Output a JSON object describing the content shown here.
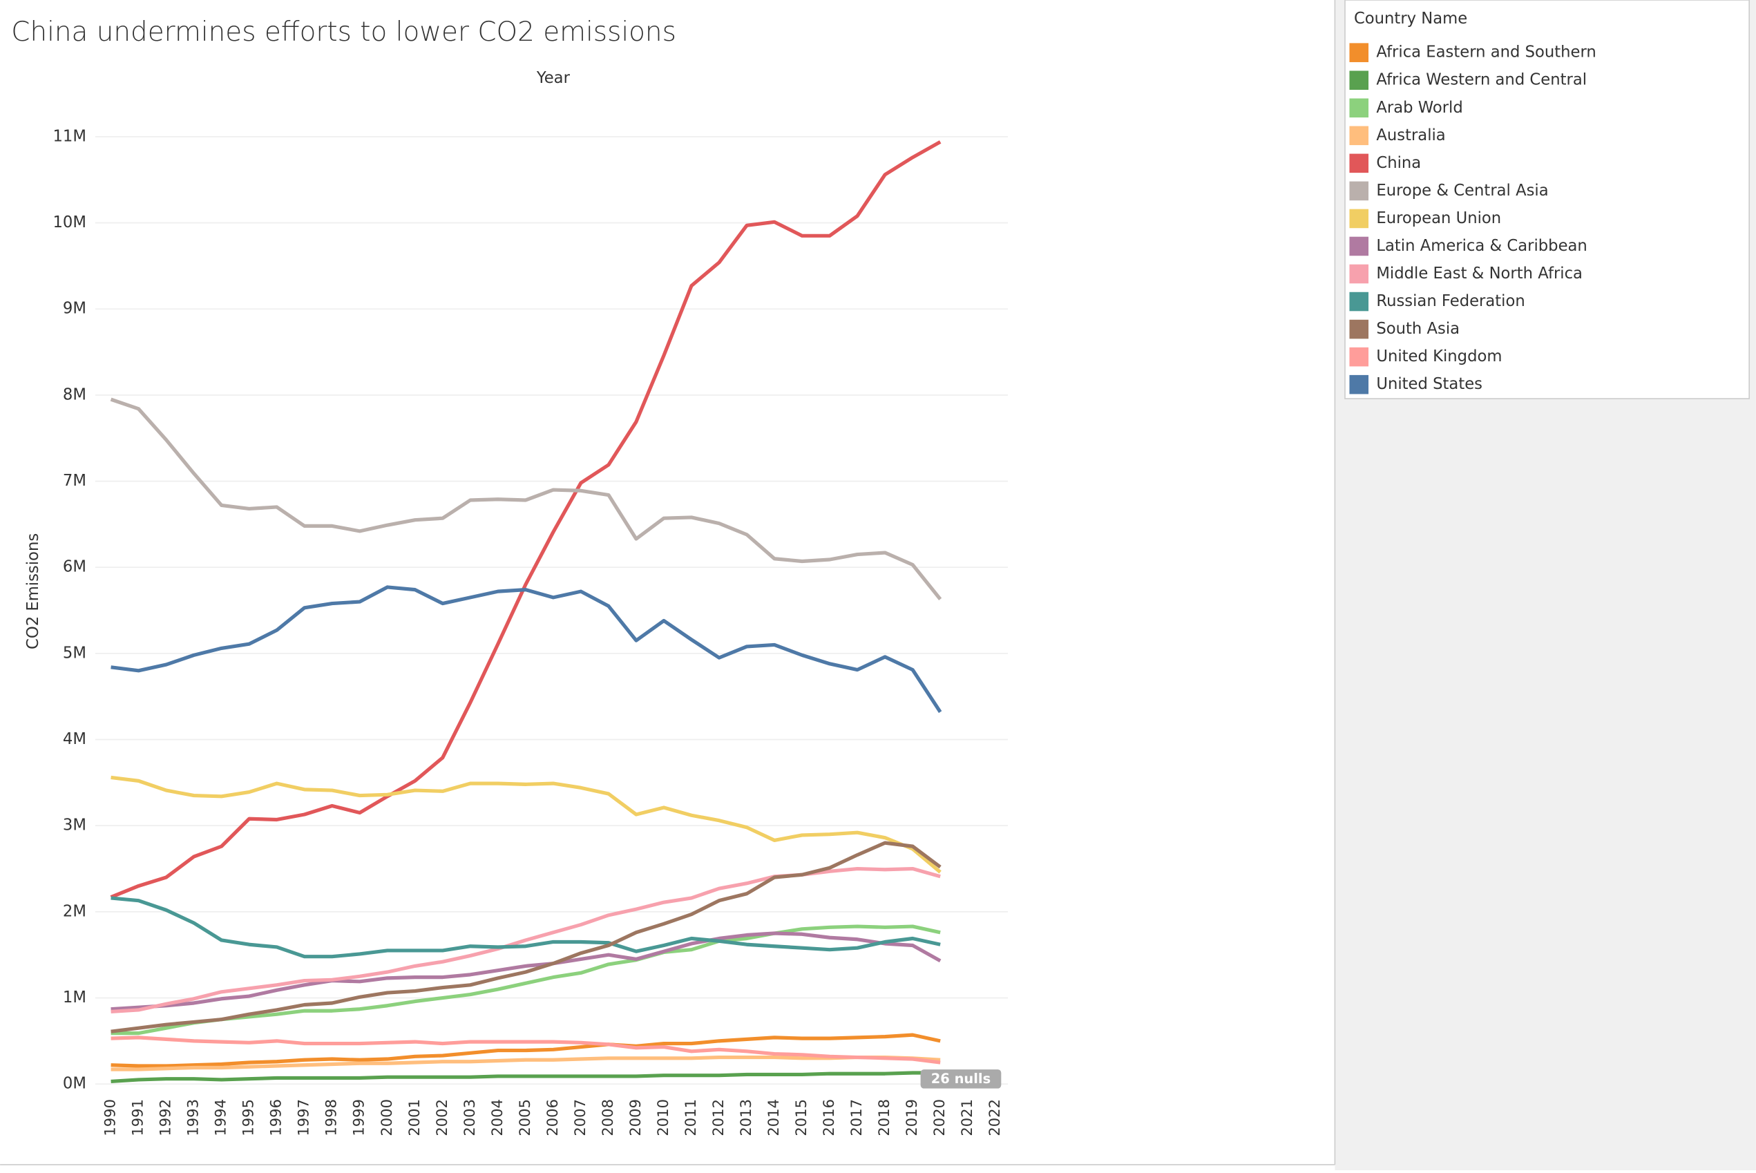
{
  "chart_data": {
    "type": "line",
    "title": "China undermines efforts to lower CO2 emissions",
    "x_label": "Year",
    "y_label": "CO2 Emissions",
    "legend_title": "Country Name",
    "annotation": "26 nulls",
    "categories": [
      "1990",
      "1991",
      "1992",
      "1993",
      "1994",
      "1995",
      "1996",
      "1997",
      "1998",
      "1999",
      "2000",
      "2001",
      "2002",
      "2003",
      "2004",
      "2005",
      "2006",
      "2007",
      "2008",
      "2009",
      "2010",
      "2011",
      "2012",
      "2013",
      "2014",
      "2015",
      "2016",
      "2017",
      "2018",
      "2019",
      "2020",
      "2021",
      "2022"
    ],
    "ylim": [
      -100000,
      11500000
    ],
    "yticks": [
      {
        "value": 0,
        "label": "0M"
      },
      {
        "value": 1000000,
        "label": "1M"
      },
      {
        "value": 2000000,
        "label": "2M"
      },
      {
        "value": 3000000,
        "label": "3M"
      },
      {
        "value": 4000000,
        "label": "4M"
      },
      {
        "value": 5000000,
        "label": "5M"
      },
      {
        "value": 6000000,
        "label": "6M"
      },
      {
        "value": 7000000,
        "label": "7M"
      },
      {
        "value": 8000000,
        "label": "8M"
      },
      {
        "value": 9000000,
        "label": "9M"
      },
      {
        "value": 10000000,
        "label": "10M"
      },
      {
        "value": 11000000,
        "label": "11M"
      }
    ],
    "grid": true,
    "legend": "right",
    "series": [
      {
        "name": "Africa Eastern and Southern",
        "color": "#f28e2b",
        "values": [
          220000,
          210000,
          210000,
          220000,
          230000,
          250000,
          260000,
          280000,
          290000,
          280000,
          290000,
          320000,
          330000,
          360000,
          390000,
          390000,
          400000,
          430000,
          460000,
          440000,
          470000,
          470000,
          500000,
          520000,
          540000,
          530000,
          530000,
          540000,
          550000,
          570000,
          500000,
          null,
          null
        ]
      },
      {
        "name": "Africa Western and Central",
        "color": "#59a14f",
        "values": [
          30000,
          50000,
          60000,
          60000,
          50000,
          60000,
          70000,
          70000,
          70000,
          70000,
          80000,
          80000,
          80000,
          80000,
          90000,
          90000,
          90000,
          90000,
          90000,
          90000,
          100000,
          100000,
          100000,
          110000,
          110000,
          110000,
          120000,
          120000,
          120000,
          130000,
          130000,
          null,
          null
        ]
      },
      {
        "name": "Arab World",
        "color": "#8cd17d",
        "values": [
          590000,
          590000,
          650000,
          710000,
          750000,
          780000,
          810000,
          850000,
          850000,
          870000,
          910000,
          960000,
          1000000,
          1040000,
          1100000,
          1170000,
          1240000,
          1290000,
          1390000,
          1440000,
          1530000,
          1560000,
          1660000,
          1690000,
          1750000,
          1800000,
          1820000,
          1830000,
          1820000,
          1830000,
          1760000,
          null,
          null
        ]
      },
      {
        "name": "Australia",
        "color": "#ffbe7d",
        "values": [
          170000,
          170000,
          180000,
          190000,
          190000,
          200000,
          210000,
          220000,
          230000,
          240000,
          240000,
          250000,
          260000,
          260000,
          270000,
          280000,
          280000,
          290000,
          300000,
          300000,
          300000,
          300000,
          310000,
          310000,
          310000,
          300000,
          300000,
          310000,
          310000,
          300000,
          280000,
          null,
          null
        ]
      },
      {
        "name": "China",
        "color": "#e15759",
        "values": [
          2170000,
          2300000,
          2400000,
          2640000,
          2760000,
          3080000,
          3070000,
          3130000,
          3230000,
          3150000,
          3340000,
          3520000,
          3790000,
          4430000,
          5110000,
          5800000,
          6410000,
          6980000,
          7190000,
          7690000,
          8460000,
          9270000,
          9540000,
          9970000,
          10010000,
          9850000,
          9850000,
          10080000,
          10560000,
          10760000,
          10940000,
          null,
          null
        ]
      },
      {
        "name": "Europe & Central Asia",
        "color": "#bab0ac",
        "values": [
          7950000,
          7840000,
          7480000,
          7090000,
          6720000,
          6680000,
          6700000,
          6480000,
          6480000,
          6420000,
          6490000,
          6550000,
          6570000,
          6780000,
          6790000,
          6780000,
          6900000,
          6890000,
          6840000,
          6330000,
          6570000,
          6580000,
          6510000,
          6380000,
          6100000,
          6070000,
          6090000,
          6150000,
          6170000,
          6030000,
          5630000,
          null,
          null
        ]
      },
      {
        "name": "European Union",
        "color": "#f1ce63",
        "values": [
          3560000,
          3520000,
          3410000,
          3350000,
          3340000,
          3390000,
          3490000,
          3420000,
          3410000,
          3350000,
          3360000,
          3410000,
          3400000,
          3490000,
          3490000,
          3480000,
          3490000,
          3440000,
          3370000,
          3130000,
          3210000,
          3120000,
          3060000,
          2980000,
          2830000,
          2890000,
          2900000,
          2920000,
          2860000,
          2730000,
          2460000,
          null,
          null
        ]
      },
      {
        "name": "Latin America & Caribbean",
        "color": "#b07aa1",
        "values": [
          870000,
          890000,
          910000,
          940000,
          990000,
          1020000,
          1090000,
          1150000,
          1200000,
          1190000,
          1230000,
          1240000,
          1240000,
          1270000,
          1320000,
          1370000,
          1400000,
          1450000,
          1500000,
          1450000,
          1540000,
          1630000,
          1690000,
          1730000,
          1750000,
          1740000,
          1700000,
          1680000,
          1630000,
          1610000,
          1430000,
          null,
          null
        ]
      },
      {
        "name": "Middle East & North Africa",
        "color": "#f7a1ad",
        "values": [
          840000,
          860000,
          930000,
          990000,
          1070000,
          1110000,
          1150000,
          1200000,
          1210000,
          1250000,
          1300000,
          1370000,
          1420000,
          1490000,
          1570000,
          1670000,
          1760000,
          1850000,
          1960000,
          2030000,
          2110000,
          2160000,
          2270000,
          2330000,
          2410000,
          2430000,
          2470000,
          2500000,
          2490000,
          2500000,
          2410000,
          null,
          null
        ]
      },
      {
        "name": "Russian Federation",
        "color": "#499894",
        "values": [
          2160000,
          2130000,
          2020000,
          1870000,
          1670000,
          1620000,
          1590000,
          1480000,
          1480000,
          1510000,
          1550000,
          1550000,
          1550000,
          1600000,
          1590000,
          1600000,
          1650000,
          1650000,
          1640000,
          1540000,
          1610000,
          1690000,
          1660000,
          1620000,
          1600000,
          1580000,
          1560000,
          1580000,
          1650000,
          1690000,
          1620000,
          null,
          null
        ]
      },
      {
        "name": "South Asia",
        "color": "#9d7660",
        "values": [
          610000,
          650000,
          690000,
          720000,
          750000,
          810000,
          860000,
          920000,
          940000,
          1010000,
          1060000,
          1080000,
          1120000,
          1150000,
          1230000,
          1300000,
          1400000,
          1520000,
          1610000,
          1760000,
          1860000,
          1970000,
          2130000,
          2210000,
          2400000,
          2430000,
          2510000,
          2660000,
          2800000,
          2760000,
          2520000,
          null,
          null
        ]
      },
      {
        "name": "United Kingdom",
        "color": "#ff9d9a",
        "values": [
          530000,
          540000,
          520000,
          500000,
          490000,
          480000,
          500000,
          470000,
          470000,
          470000,
          480000,
          490000,
          470000,
          490000,
          490000,
          490000,
          490000,
          480000,
          460000,
          420000,
          430000,
          380000,
          400000,
          380000,
          350000,
          340000,
          320000,
          310000,
          300000,
          290000,
          250000,
          null,
          null
        ]
      },
      {
        "name": "United States",
        "color": "#4e79a7",
        "values": [
          4840000,
          4800000,
          4870000,
          4980000,
          5060000,
          5110000,
          5270000,
          5530000,
          5580000,
          5600000,
          5770000,
          5740000,
          5580000,
          5650000,
          5720000,
          5740000,
          5650000,
          5720000,
          5550000,
          5150000,
          5380000,
          5160000,
          4950000,
          5080000,
          5100000,
          4980000,
          4880000,
          4810000,
          4960000,
          4810000,
          4320000,
          null,
          null
        ]
      }
    ]
  }
}
